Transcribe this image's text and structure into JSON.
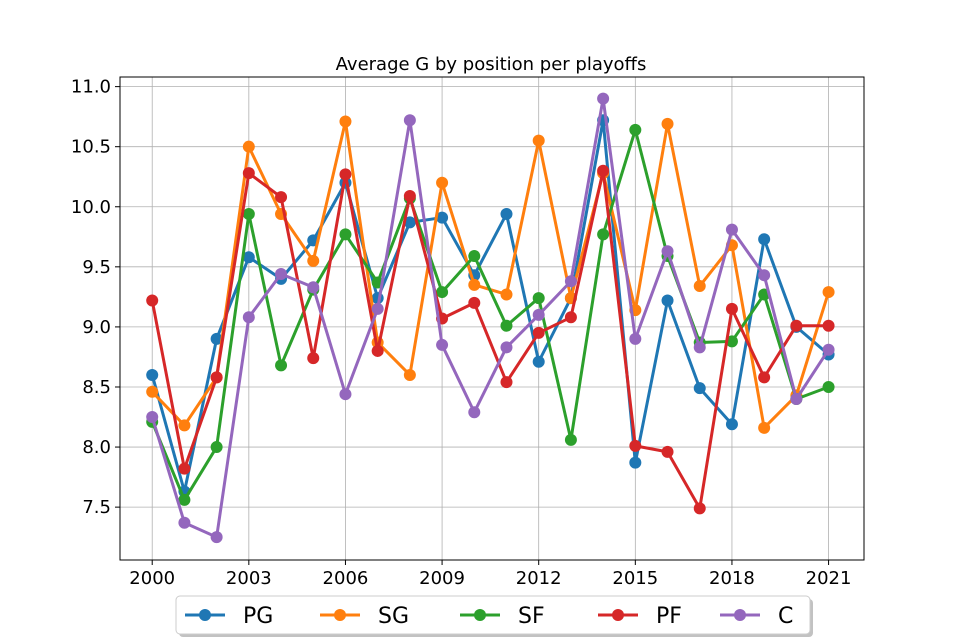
{
  "chart_data": {
    "type": "line",
    "title": "Average G by position per playoffs",
    "xlabel": "",
    "ylabel": "",
    "x": [
      2000,
      2001,
      2002,
      2003,
      2004,
      2005,
      2006,
      2007,
      2008,
      2009,
      2010,
      2011,
      2012,
      2013,
      2014,
      2015,
      2016,
      2017,
      2018,
      2019,
      2020,
      2021
    ],
    "xticks": [
      2000,
      2003,
      2006,
      2009,
      2012,
      2015,
      2018,
      2021
    ],
    "xlim": [
      1999.0,
      2022.1
    ],
    "yticks": [
      7.5,
      8.0,
      8.5,
      9.0,
      9.5,
      10.0,
      10.5,
      11.0
    ],
    "ylim": [
      7.06,
      11.08
    ],
    "grid": true,
    "legend_position": "bottom-center",
    "series": [
      {
        "name": "PG",
        "color": "#1f77b4",
        "values": [
          8.6,
          7.63,
          8.9,
          9.58,
          9.4,
          9.72,
          10.2,
          9.24,
          9.87,
          9.91,
          9.43,
          9.94,
          8.71,
          9.24,
          10.72,
          7.87,
          9.22,
          8.49,
          8.19,
          9.73,
          9.0,
          8.77
        ]
      },
      {
        "name": "SG",
        "color": "#ff7f0e",
        "values": [
          8.46,
          8.18,
          8.58,
          10.5,
          9.94,
          9.55,
          10.71,
          8.87,
          8.6,
          10.2,
          9.35,
          9.27,
          10.55,
          9.24,
          10.28,
          9.14,
          10.69,
          9.34,
          9.68,
          8.16,
          8.43,
          9.29
        ]
      },
      {
        "name": "SF",
        "color": "#2ca02c",
        "values": [
          8.21,
          7.56,
          8.0,
          9.94,
          8.68,
          9.31,
          9.77,
          9.37,
          10.07,
          9.29,
          9.59,
          9.01,
          9.24,
          8.06,
          9.77,
          10.64,
          9.59,
          8.87,
          8.88,
          9.27,
          8.4,
          8.5
        ]
      },
      {
        "name": "PF",
        "color": "#d62728",
        "values": [
          9.22,
          7.82,
          8.58,
          10.28,
          10.08,
          8.74,
          10.27,
          8.8,
          10.09,
          9.07,
          9.2,
          8.54,
          8.95,
          9.08,
          10.3,
          8.01,
          7.96,
          7.49,
          9.15,
          8.58,
          9.01,
          9.01
        ]
      },
      {
        "name": "C",
        "color": "#9467bd",
        "values": [
          8.25,
          7.37,
          7.25,
          9.08,
          9.44,
          9.33,
          8.44,
          9.15,
          10.72,
          8.85,
          8.29,
          8.83,
          9.1,
          9.38,
          10.9,
          8.9,
          9.63,
          8.83,
          9.81,
          9.43,
          8.4,
          8.81
        ]
      }
    ]
  }
}
